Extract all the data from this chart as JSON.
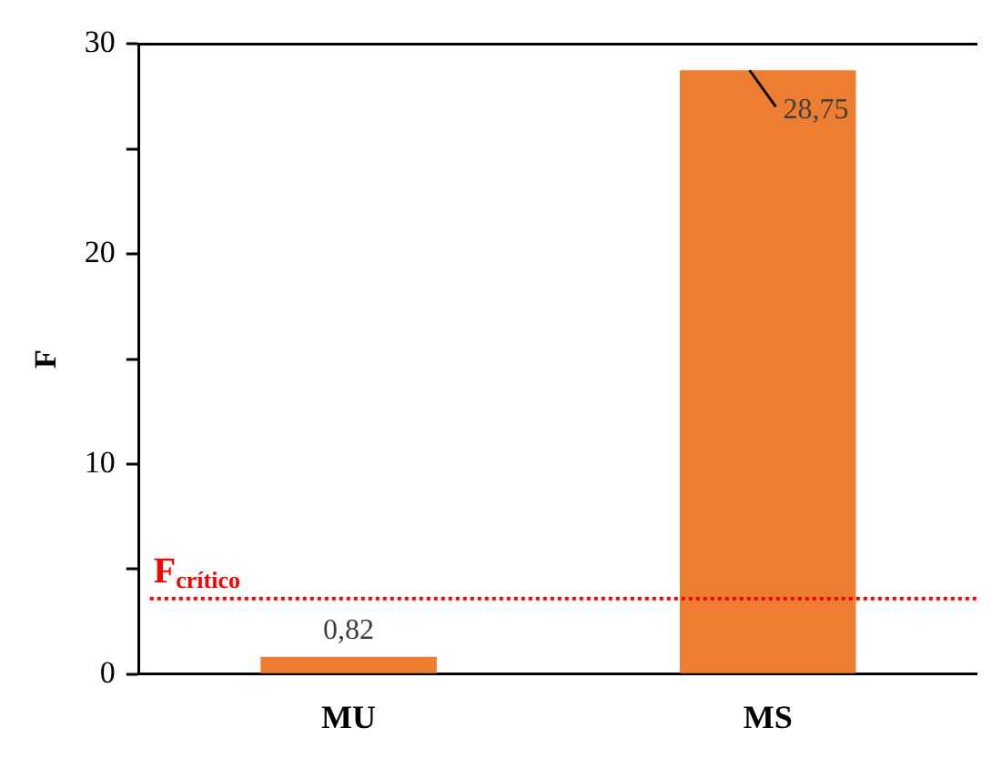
{
  "chart_data": {
    "type": "bar",
    "ylabel": "F",
    "categories": [
      "MU",
      "MS"
    ],
    "values": [
      0.82,
      28.75
    ],
    "color": "#ed7d31",
    "value_labels": [
      "0,82",
      "28,75"
    ],
    "ylim": [
      0,
      30
    ],
    "yticks": [
      0,
      {
        "value": 5,
        "label": null
      },
      10,
      {
        "value": 15,
        "label": null
      },
      20,
      {
        "value": 25,
        "label": null
      },
      30
    ],
    "grid": false,
    "legend": false,
    "ref_lines": [
      {
        "axis": "y",
        "value": 3.6,
        "label": "F$_{crítico}$",
        "color": "#ff0000",
        "line_style": "dotted"
      }
    ]
  }
}
